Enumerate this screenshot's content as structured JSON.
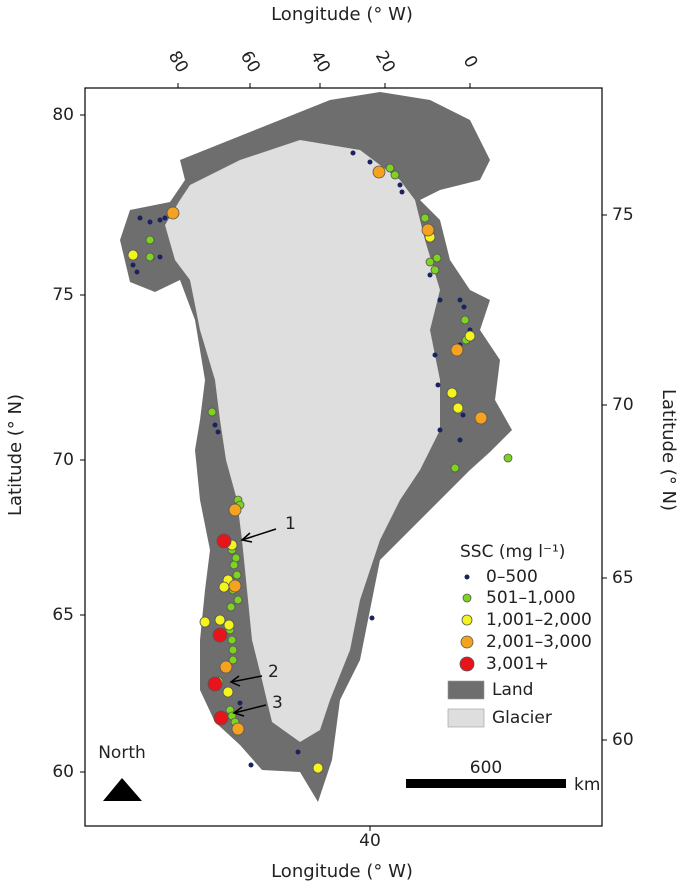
{
  "axes": {
    "top_label": "Longitude (° W)",
    "bottom_label": "Longitude (° W)",
    "left_label": "Latitude (° N)",
    "right_label": "Latitude (° N)",
    "top_ticks": [
      80,
      60,
      40,
      20,
      0
    ],
    "bottom_ticks": [
      40
    ],
    "left_ticks": [
      80,
      75,
      70,
      65,
      60
    ],
    "right_ticks": [
      75,
      70,
      65,
      60
    ]
  },
  "legend": {
    "title": "SSC (mg l⁻¹)",
    "items": [
      {
        "label": "0–500",
        "color": "#1c2260"
      },
      {
        "label": "501–1,000",
        "color": "#7ed321"
      },
      {
        "label": "1,001–2,000",
        "color": "#f5f51e"
      },
      {
        "label": "2,001–3,000",
        "color": "#f5a21e"
      },
      {
        "label": "3,001+",
        "color": "#e8141c"
      },
      {
        "label": "Land",
        "color": "#6e6e6e"
      },
      {
        "label": "Glacier",
        "color": "#dedede"
      }
    ]
  },
  "annotations": [
    "1",
    "2",
    "3"
  ],
  "north": "North",
  "scale_bar": {
    "value": 600,
    "unit": "km"
  }
}
